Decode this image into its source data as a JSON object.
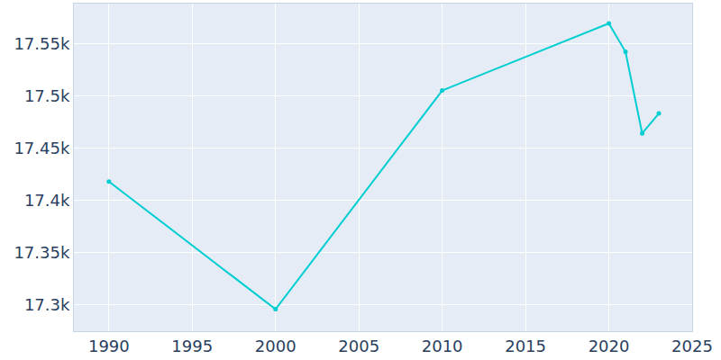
{
  "chart_data": {
    "type": "line",
    "x": [
      1990,
      2000,
      2010,
      2020,
      2021,
      2022,
      2023
    ],
    "values": [
      17418,
      17296,
      17505,
      17569,
      17542,
      17464,
      17483
    ],
    "color": "#00ced1",
    "marker": "circle",
    "line_style": "solid",
    "xlim": [
      1987.9,
      2025
    ],
    "xticks": [
      1990,
      1995,
      2000,
      2005,
      2010,
      2015,
      2020,
      2025
    ],
    "ylim": [
      17275,
      17588
    ],
    "yticks": [
      {
        "value": 17300,
        "label": "17.3k"
      },
      {
        "value": 17350,
        "label": "17.35k"
      },
      {
        "value": 17400,
        "label": "17.4k"
      },
      {
        "value": 17450,
        "label": "17.45k"
      },
      {
        "value": 17500,
        "label": "17.5k"
      },
      {
        "value": 17550,
        "label": "17.55k"
      }
    ],
    "grid": true
  }
}
